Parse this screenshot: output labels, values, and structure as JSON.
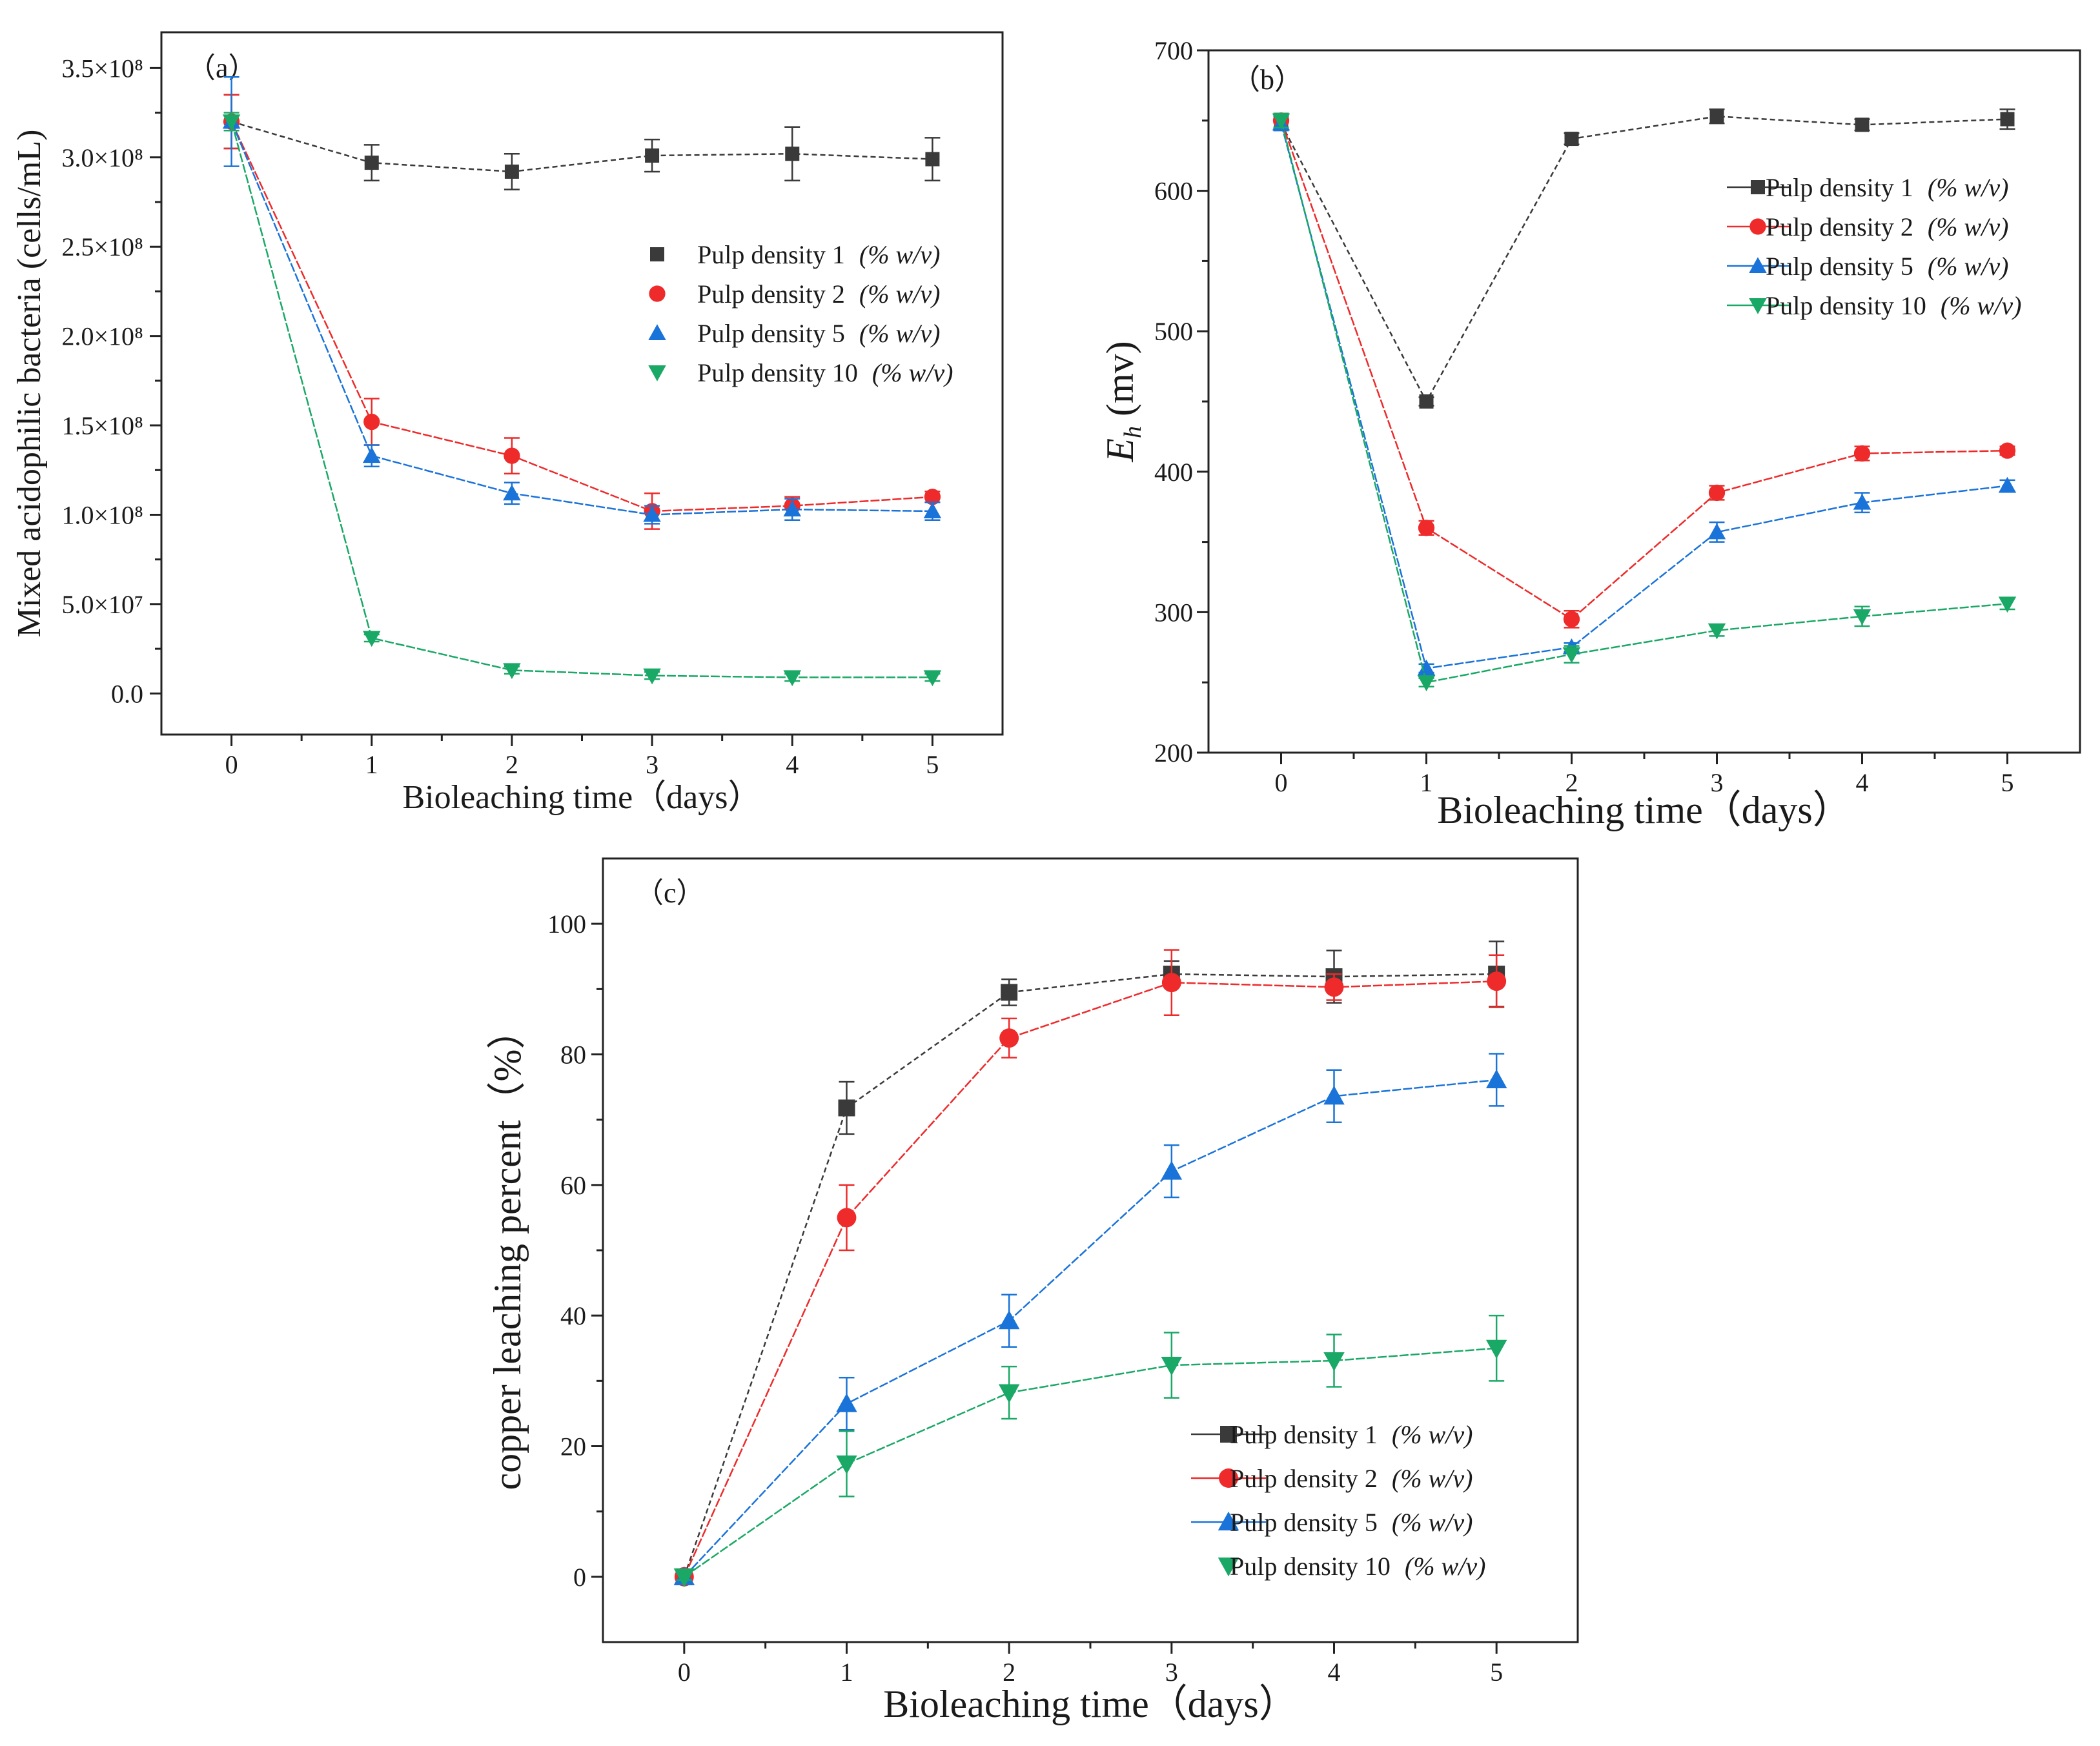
{
  "figure": {
    "series_colors": {
      "Pulp density 1": "#3a3a3a",
      "Pulp density 2": "#ee2a2a",
      "Pulp density 5": "#1a73d9",
      "Pulp density 10": "#1aa866"
    }
  },
  "chart_data": [
    {
      "id": "a",
      "panel_label": "（a）",
      "type": "line",
      "xlabel": "Bioleaching time（days）",
      "ylabel": "Mixed acidophilic bacteria (cells/mL)",
      "x": [
        0,
        1,
        2,
        3,
        4,
        5
      ],
      "xlim": [
        -0.5,
        5.5
      ],
      "ylim": [
        -23000000.0,
        370000000.0
      ],
      "yticks": [
        0,
        50000000.0,
        100000000.0,
        150000000.0,
        200000000.0,
        250000000.0,
        300000000.0,
        350000000.0
      ],
      "ytick_labels": [
        "0.0",
        "5.0×10⁷",
        "1.0×10⁸",
        "1.5×10⁸",
        "2.0×10⁸",
        "2.5×10⁸",
        "3.0×10⁸",
        "3.5×10⁸"
      ],
      "xtick_labels": [
        "0",
        "1",
        "2",
        "3",
        "4",
        "5"
      ],
      "legend_position": "upper-right",
      "series": [
        {
          "name": "Pulp density 1",
          "unit": "(% w/v)",
          "marker": "square",
          "values": [
            320000000.0,
            297000000.0,
            292000000.0,
            301000000.0,
            302000000.0,
            299000000.0
          ],
          "errors": [
            15000000.0,
            10000000.0,
            10000000.0,
            9000000.0,
            15000000.0,
            12000000.0
          ]
        },
        {
          "name": "Pulp density 2",
          "unit": "(% w/v)",
          "marker": "circle",
          "values": [
            320000000.0,
            152000000.0,
            133000000.0,
            102000000.0,
            105000000.0,
            110000000.0
          ],
          "errors": [
            15000000.0,
            13000000.0,
            10000000.0,
            10000000.0,
            5000000.0,
            3000000.0
          ]
        },
        {
          "name": "Pulp density 5",
          "unit": "(% w/v)",
          "marker": "triangle-up",
          "values": [
            320000000.0,
            133000000.0,
            112000000.0,
            100000000.0,
            103000000.0,
            102000000.0
          ],
          "errors": [
            25000000.0,
            6000000.0,
            6000000.0,
            5000000.0,
            6000000.0,
            5000000.0
          ]
        },
        {
          "name": "Pulp density 10",
          "unit": "(% w/v)",
          "marker": "triangle-down",
          "values": [
            320000000.0,
            31000000.0,
            13000000.0,
            10000000.0,
            9000000.0,
            9000000.0
          ],
          "errors": [
            5000000.0,
            2000000.0,
            2000000.0,
            2000000.0,
            2000000.0,
            2000000.0
          ]
        }
      ]
    },
    {
      "id": "b",
      "panel_label": "（b）",
      "type": "line",
      "xlabel": "Bioleaching time（days）",
      "ylabel_main": "E",
      "ylabel_sub": "h",
      "ylabel_unit": " (mv)",
      "x": [
        0,
        1,
        2,
        3,
        4,
        5
      ],
      "xlim": [
        -0.5,
        5.5
      ],
      "ylim": [
        200,
        700
      ],
      "yticks": [
        200,
        300,
        400,
        500,
        600,
        700
      ],
      "ytick_labels": [
        "200",
        "300",
        "400",
        "500",
        "600",
        "700"
      ],
      "xtick_labels": [
        "0",
        "1",
        "2",
        "3",
        "4",
        "5"
      ],
      "legend_position": "upper-right",
      "series": [
        {
          "name": "Pulp density 1",
          "unit": "(% w/v)",
          "marker": "square",
          "values": [
            648,
            450,
            637,
            653,
            647,
            651
          ],
          "errors": [
            5,
            3,
            4,
            5,
            4,
            7
          ]
        },
        {
          "name": "Pulp density 2",
          "unit": "(% w/v)",
          "marker": "circle",
          "values": [
            650,
            360,
            295,
            385,
            413,
            415
          ],
          "errors": [
            5,
            5,
            6,
            5,
            5,
            3
          ]
        },
        {
          "name": "Pulp density 5",
          "unit": "(% w/v)",
          "marker": "triangle-up",
          "values": [
            648,
            260,
            275,
            357,
            378,
            390
          ],
          "errors": [
            5,
            3,
            3,
            7,
            7,
            4
          ]
        },
        {
          "name": "Pulp density 10",
          "unit": "(% w/v)",
          "marker": "triangle-down",
          "values": [
            650,
            250,
            270,
            287,
            297,
            306
          ],
          "errors": [
            5,
            3,
            6,
            4,
            7,
            4
          ]
        }
      ]
    },
    {
      "id": "c",
      "panel_label": "（c）",
      "type": "line",
      "xlabel": "Bioleaching time（days）",
      "ylabel": "copper leaching percent（%）",
      "x": [
        0,
        1,
        2,
        3,
        4,
        5
      ],
      "xlim": [
        -0.5,
        5.5
      ],
      "ylim": [
        -10,
        110
      ],
      "yticks": [
        0,
        20,
        40,
        60,
        80,
        100
      ],
      "ytick_labels": [
        "0",
        "20",
        "40",
        "60",
        "80",
        "100"
      ],
      "xtick_labels": [
        "0",
        "1",
        "2",
        "3",
        "4",
        "5"
      ],
      "legend_position": "lower-right",
      "series": [
        {
          "name": "Pulp density 1",
          "unit": "(% w/v)",
          "marker": "square",
          "line_legend": true,
          "values": [
            0,
            71.8,
            89.5,
            92.3,
            91.9,
            92.3
          ],
          "errors": [
            0.5,
            4,
            2,
            2,
            4,
            5
          ]
        },
        {
          "name": "Pulp density 2",
          "unit": "(% w/v)",
          "marker": "circle",
          "line_legend": true,
          "values": [
            0,
            55.0,
            82.5,
            91.0,
            90.3,
            91.2
          ],
          "errors": [
            0.5,
            5,
            3,
            5,
            2,
            4
          ]
        },
        {
          "name": "Pulp density 5",
          "unit": "(% w/v)",
          "marker": "triangle-up",
          "line_legend": true,
          "values": [
            0,
            26.5,
            39.2,
            62.1,
            73.6,
            76.1
          ],
          "errors": [
            0.5,
            4,
            4,
            4,
            4,
            4
          ]
        },
        {
          "name": "Pulp density 10",
          "unit": "(% w/v)",
          "marker": "triangle-down",
          "line_legend": false,
          "values": [
            0,
            17.3,
            28.2,
            32.4,
            33.1,
            35.0
          ],
          "errors": [
            0.5,
            5,
            4,
            5,
            4,
            5
          ]
        }
      ]
    }
  ]
}
